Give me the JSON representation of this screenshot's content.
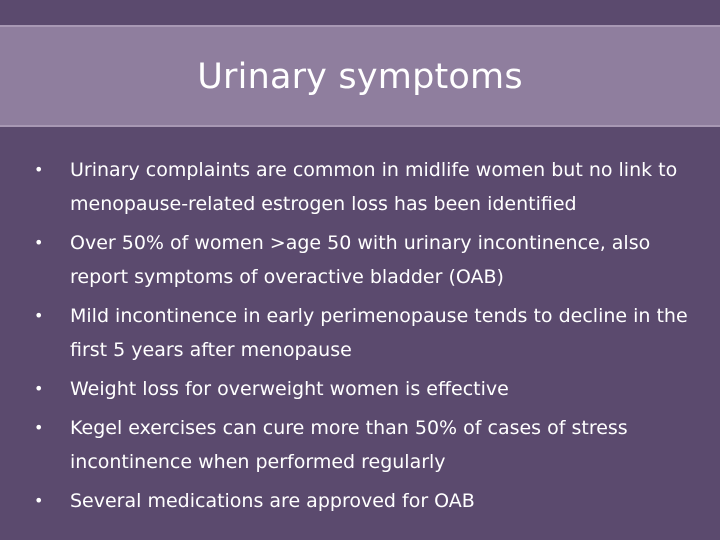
{
  "slide": {
    "title": "Urinary symptoms",
    "bullets": [
      "Urinary complaints are common in midlife women but no link to menopause-related estrogen loss has been identified",
      "Over 50% of women >age 50 with urinary incontinence, also report symptoms of overactive bladder (OAB)",
      "Mild incontinence in early perimenopause tends to decline in the first 5 years after menopause",
      "Weight loss for overweight women is effective",
      "Kegel exercises can cure more than 50% of cases of stress incontinence when performed regularly",
      "Several medications are approved for OAB"
    ],
    "bullet_marker": "•",
    "colors": {
      "background": "#5b4a6e",
      "title_band": "#8f7e9e",
      "text": "#ffffff"
    }
  }
}
